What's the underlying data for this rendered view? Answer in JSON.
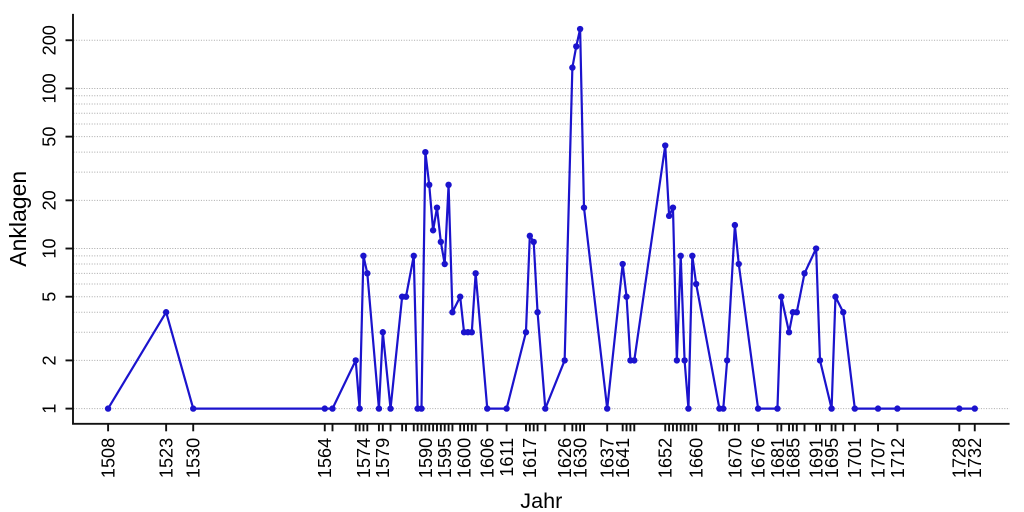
{
  "chart_data": {
    "type": "line",
    "title": "",
    "xlabel": "Jahr",
    "ylabel": "Anklagen",
    "x_scale": "linear",
    "y_scale": "log",
    "xlim": [
      1499,
      1741
    ],
    "ylim": [
      0.81,
      273
    ],
    "y_tick_labels": [
      1,
      2,
      5,
      10,
      20,
      50,
      100,
      200
    ],
    "gridline_values": [
      1,
      2,
      3,
      4,
      5,
      6,
      7,
      8,
      9,
      10,
      20,
      30,
      40,
      50,
      60,
      70,
      80,
      90,
      100,
      200
    ],
    "x_labeled_ticks": [
      1508,
      1523,
      1530,
      1564,
      1574,
      1579,
      1590,
      1595,
      1600,
      1606,
      1611,
      1617,
      1626,
      1630,
      1637,
      1641,
      1652,
      1660,
      1670,
      1676,
      1681,
      1685,
      1691,
      1695,
      1701,
      1707,
      1712,
      1728,
      1732
    ],
    "grid": "horizontal-dotted",
    "legend": "none",
    "series": [
      {
        "name": "Anklagen",
        "x": [
          1508,
          1523,
          1530,
          1564,
          1566,
          1572,
          1573,
          1574,
          1575,
          1578,
          1579,
          1581,
          1584,
          1585,
          1587,
          1588,
          1589,
          1590,
          1591,
          1592,
          1593,
          1594,
          1595,
          1596,
          1597,
          1599,
          1600,
          1601,
          1602,
          1603,
          1606,
          1611,
          1616,
          1617,
          1618,
          1619,
          1621,
          1626,
          1628,
          1629,
          1630,
          1631,
          1637,
          1641,
          1642,
          1643,
          1644,
          1652,
          1653,
          1654,
          1655,
          1656,
          1657,
          1658,
          1659,
          1660,
          1666,
          1667,
          1668,
          1670,
          1671,
          1676,
          1681,
          1682,
          1684,
          1685,
          1686,
          1688,
          1691,
          1692,
          1695,
          1696,
          1698,
          1701,
          1707,
          1712,
          1728,
          1732
        ],
        "y": [
          1,
          4,
          1,
          1,
          1,
          2,
          1,
          9,
          7,
          1,
          3,
          1,
          5,
          5,
          9,
          1,
          1,
          40,
          25,
          13,
          18,
          11,
          8,
          25,
          4,
          5,
          3,
          3,
          3,
          7,
          1,
          1,
          3,
          12,
          11,
          4,
          1,
          2,
          135,
          183,
          235,
          18,
          1,
          8,
          5,
          2,
          2,
          44,
          16,
          18,
          2,
          9,
          2,
          1,
          9,
          6,
          1,
          1,
          2,
          14,
          8,
          1,
          1,
          5,
          3,
          4,
          4,
          7,
          10,
          2,
          1,
          5,
          4,
          1,
          1,
          1,
          1,
          1
        ]
      }
    ],
    "colors": {
      "line": "#1b13cd",
      "marker": "#1b13cd",
      "grid": "#a9a9a9",
      "axis": "#111111",
      "text": "#000000",
      "background": "#ffffff"
    }
  }
}
